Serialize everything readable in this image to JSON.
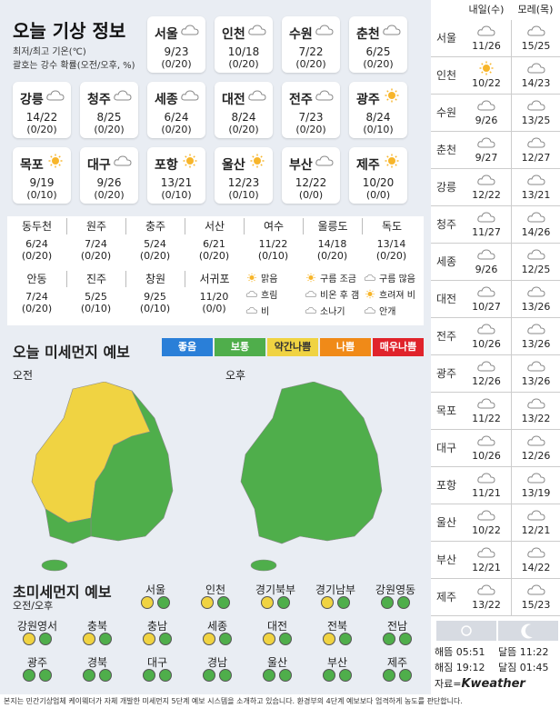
{
  "header": {
    "title": "오늘 기상 정보",
    "sub1": "최저/최고 기온(℃)",
    "sub2": "괄호는 강수 확률(오전/오후, %)"
  },
  "cards": [
    {
      "name": "서울",
      "icon": "cloud",
      "temp": "9/23",
      "precip": "(0/20)"
    },
    {
      "name": "인천",
      "icon": "cloud",
      "temp": "10/18",
      "precip": "(0/20)"
    },
    {
      "name": "수원",
      "icon": "cloud",
      "temp": "7/22",
      "precip": "(0/20)"
    },
    {
      "name": "춘천",
      "icon": "cloud",
      "temp": "6/25",
      "precip": "(0/20)"
    },
    {
      "name": "강릉",
      "icon": "cloud",
      "temp": "14/22",
      "precip": "(0/20)"
    },
    {
      "name": "청주",
      "icon": "cloud",
      "temp": "8/25",
      "precip": "(0/20)"
    },
    {
      "name": "세종",
      "icon": "cloud",
      "temp": "6/24",
      "precip": "(0/20)"
    },
    {
      "name": "대전",
      "icon": "cloud",
      "temp": "8/24",
      "precip": "(0/20)"
    },
    {
      "name": "전주",
      "icon": "cloud",
      "temp": "7/23",
      "precip": "(0/20)"
    },
    {
      "name": "광주",
      "icon": "sun",
      "temp": "8/24",
      "precip": "(0/10)"
    },
    {
      "name": "목포",
      "icon": "sun",
      "temp": "9/19",
      "precip": "(0/10)"
    },
    {
      "name": "대구",
      "icon": "cloud",
      "temp": "9/26",
      "precip": "(0/20)"
    },
    {
      "name": "포항",
      "icon": "sun",
      "temp": "13/21",
      "precip": "(0/10)"
    },
    {
      "name": "울산",
      "icon": "sun",
      "temp": "12/23",
      "precip": "(0/10)"
    },
    {
      "name": "부산",
      "icon": "cloud",
      "temp": "12/22",
      "precip": "(0/0)"
    },
    {
      "name": "제주",
      "icon": "sun",
      "temp": "10/20",
      "precip": "(0/0)"
    }
  ],
  "cities": [
    {
      "name": "동두천",
      "temp": "6/24",
      "precip": "(0/20)"
    },
    {
      "name": "원주",
      "temp": "7/24",
      "precip": "(0/20)"
    },
    {
      "name": "충주",
      "temp": "5/24",
      "precip": "(0/20)"
    },
    {
      "name": "서산",
      "temp": "6/21",
      "precip": "(0/20)"
    },
    {
      "name": "여수",
      "temp": "11/22",
      "precip": "(0/10)"
    },
    {
      "name": "울릉도",
      "temp": "14/18",
      "precip": "(0/20)"
    },
    {
      "name": "독도",
      "temp": "13/14",
      "precip": "(0/20)"
    },
    {
      "name": "안동",
      "temp": "7/24",
      "precip": "(0/20)"
    },
    {
      "name": "진주",
      "temp": "5/25",
      "precip": "(0/10)"
    },
    {
      "name": "창원",
      "temp": "9/25",
      "precip": "(0/10)"
    },
    {
      "name": "서귀포",
      "temp": "11/20",
      "precip": "(0/0)"
    }
  ],
  "legend": {
    "clear": "맑음",
    "partly": "구름 조금",
    "mostly": "구름 많음",
    "overcast": "흐림",
    "rain_clear": "비온 후 갬",
    "clearing": "흐려져 비",
    "rain": "비",
    "shower": "소나기",
    "fog": "안개"
  },
  "pm": {
    "title": "오늘 미세먼지 예보",
    "levels": [
      {
        "label": "좋음",
        "color": "#2a7fd8"
      },
      {
        "label": "보통",
        "color": "#4fae4b"
      },
      {
        "label": "약간나쁨",
        "color": "#f0d342"
      },
      {
        "label": "나쁨",
        "color": "#f08a18"
      },
      {
        "label": "매우나쁨",
        "color": "#e0232b"
      }
    ],
    "am": "오전",
    "pm": "오후"
  },
  "ultra": {
    "title": "초미세먼지 예보",
    "sub": "오전/오후",
    "regions": [
      {
        "name": "서울",
        "am": "#f0d342",
        "pm": "#4fae4b"
      },
      {
        "name": "인천",
        "am": "#f0d342",
        "pm": "#4fae4b"
      },
      {
        "name": "경기북부",
        "am": "#f0d342",
        "pm": "#4fae4b"
      },
      {
        "name": "경기남부",
        "am": "#f0d342",
        "pm": "#4fae4b"
      },
      {
        "name": "강원영동",
        "am": "#4fae4b",
        "pm": "#4fae4b"
      },
      {
        "name": "강원영서",
        "am": "#f0d342",
        "pm": "#4fae4b"
      },
      {
        "name": "충북",
        "am": "#f0d342",
        "pm": "#4fae4b"
      },
      {
        "name": "충남",
        "am": "#f0d342",
        "pm": "#4fae4b"
      },
      {
        "name": "세종",
        "am": "#f0d342",
        "pm": "#4fae4b"
      },
      {
        "name": "대전",
        "am": "#f0d342",
        "pm": "#4fae4b"
      },
      {
        "name": "전북",
        "am": "#f0d342",
        "pm": "#4fae4b"
      },
      {
        "name": "전남",
        "am": "#4fae4b",
        "pm": "#4fae4b"
      },
      {
        "name": "광주",
        "am": "#4fae4b",
        "pm": "#4fae4b"
      },
      {
        "name": "경북",
        "am": "#4fae4b",
        "pm": "#4fae4b"
      },
      {
        "name": "대구",
        "am": "#4fae4b",
        "pm": "#4fae4b"
      },
      {
        "name": "경남",
        "am": "#4fae4b",
        "pm": "#4fae4b"
      },
      {
        "name": "울산",
        "am": "#4fae4b",
        "pm": "#4fae4b"
      },
      {
        "name": "부산",
        "am": "#4fae4b",
        "pm": "#4fae4b"
      },
      {
        "name": "제주",
        "am": "#4fae4b",
        "pm": "#4fae4b"
      }
    ]
  },
  "forecast": {
    "day1": "내일(수)",
    "day2": "모레(목)",
    "rows": [
      {
        "name": "서울",
        "d1": "11/26",
        "d2": "15/25",
        "i1": "cloud",
        "i2": "cloud"
      },
      {
        "name": "인천",
        "d1": "10/22",
        "d2": "14/23",
        "i1": "sun",
        "i2": "cloud"
      },
      {
        "name": "수원",
        "d1": "9/26",
        "d2": "13/25",
        "i1": "cloud",
        "i2": "cloud"
      },
      {
        "name": "춘천",
        "d1": "9/27",
        "d2": "12/27",
        "i1": "cloud",
        "i2": "cloud"
      },
      {
        "name": "강릉",
        "d1": "12/22",
        "d2": "13/21",
        "i1": "cloud",
        "i2": "cloud"
      },
      {
        "name": "청주",
        "d1": "11/27",
        "d2": "14/26",
        "i1": "cloud",
        "i2": "cloud"
      },
      {
        "name": "세종",
        "d1": "9/26",
        "d2": "12/25",
        "i1": "cloud",
        "i2": "cloud"
      },
      {
        "name": "대전",
        "d1": "10/27",
        "d2": "13/26",
        "i1": "cloud",
        "i2": "cloud"
      },
      {
        "name": "전주",
        "d1": "10/26",
        "d2": "13/26",
        "i1": "cloud",
        "i2": "cloud"
      },
      {
        "name": "광주",
        "d1": "12/26",
        "d2": "13/26",
        "i1": "cloud",
        "i2": "cloud"
      },
      {
        "name": "목포",
        "d1": "11/22",
        "d2": "13/22",
        "i1": "cloud",
        "i2": "cloud"
      },
      {
        "name": "대구",
        "d1": "10/26",
        "d2": "12/26",
        "i1": "cloud",
        "i2": "cloud"
      },
      {
        "name": "포항",
        "d1": "11/21",
        "d2": "13/19",
        "i1": "cloud",
        "i2": "cloud"
      },
      {
        "name": "울산",
        "d1": "10/22",
        "d2": "12/21",
        "i1": "cloud",
        "i2": "cloud"
      },
      {
        "name": "부산",
        "d1": "12/21",
        "d2": "14/22",
        "i1": "cloud",
        "i2": "cloud"
      },
      {
        "name": "제주",
        "d1": "13/22",
        "d2": "15/23",
        "i1": "cloud",
        "i2": "cloud"
      }
    ]
  },
  "sun": {
    "rise": "해뜸 05:51",
    "set": "해짐 19:12",
    "moonrise": "달뜸 11:22",
    "moonset": "달짐 01:45",
    "source": "자료=",
    "brand": "Kweather"
  },
  "footer": "본지는 민간기상업체 케이웨더가 자체 개발한 미세먼지 5단계 예보 시스템을 소개하고 있습니다. 환경부의 4단계 예보보다 엄격하게 농도를 판단합니다."
}
